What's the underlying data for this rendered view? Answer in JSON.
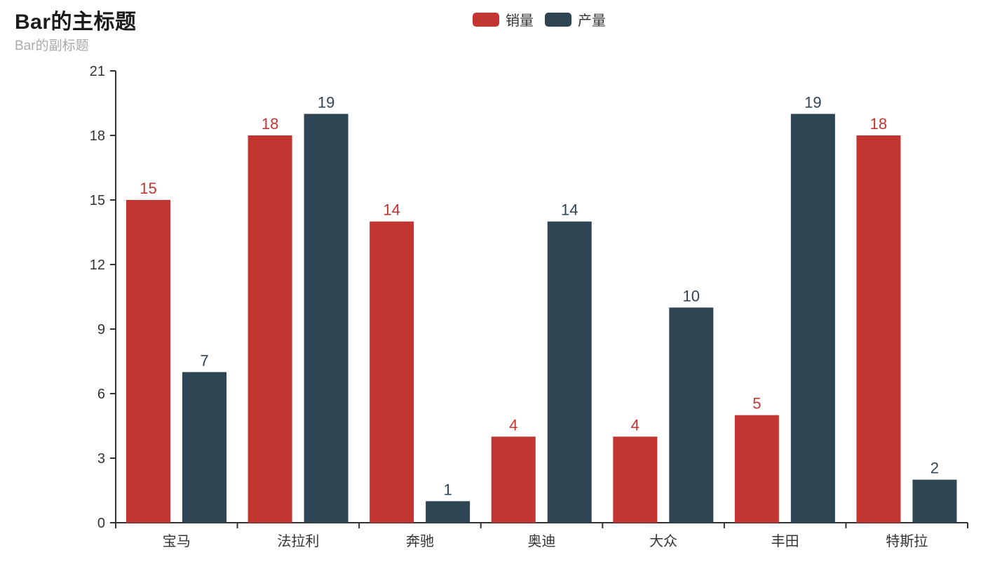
{
  "chart_data": {
    "type": "bar",
    "title": "Bar的主标题",
    "subtitle": "Bar的副标题",
    "categories": [
      "宝马",
      "法拉利",
      "奔驰",
      "奥迪",
      "大众",
      "丰田",
      "特斯拉"
    ],
    "series": [
      {
        "name": "销量",
        "color": "#c23531",
        "values": [
          15,
          18,
          14,
          4,
          4,
          5,
          18
        ]
      },
      {
        "name": "产量",
        "color": "#2f4554",
        "values": [
          7,
          19,
          1,
          14,
          10,
          19,
          2
        ]
      }
    ],
    "xlabel": "",
    "ylabel": "",
    "ylim": [
      0,
      21
    ],
    "ytick_step": 3,
    "yticks": [
      0,
      3,
      6,
      9,
      12,
      15,
      18,
      21
    ],
    "grid": false,
    "value_labels": true,
    "legend_position": "top-center",
    "colors": {
      "axis": "#333333",
      "axis_label": "#333333",
      "title": "#1c1c1c",
      "subtitle": "#aaaaaa",
      "background": "#ffffff"
    }
  }
}
